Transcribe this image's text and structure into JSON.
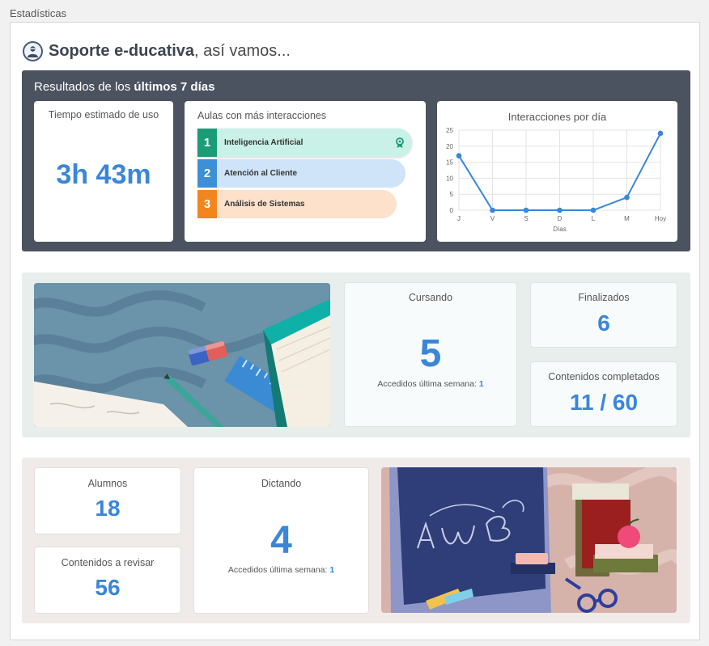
{
  "section_label": "Estadísticas",
  "header": {
    "title_bold": "Soporte e-ducativa",
    "title_rest": ", así vamos..."
  },
  "results": {
    "title_prefix": "Resultados de los ",
    "title_bold": "últimos 7 días",
    "usage": {
      "label": "Tiempo estimado de uso",
      "value": "3h 43m"
    },
    "aulas": {
      "label": "Aulas con más interacciones",
      "items": [
        {
          "rank": "1",
          "name": "Inteligencia Artificial",
          "color": "#1a9c78",
          "bg": "#c9f1e7",
          "icon": "award-icon"
        },
        {
          "rank": "2",
          "name": "Atención al Cliente",
          "color": "#3d8fd6",
          "bg": "#cfe4f8"
        },
        {
          "rank": "3",
          "name": "Análisis de Sistemas",
          "color": "#f2861e",
          "bg": "#fde1cb"
        }
      ]
    },
    "interactions_chart": {
      "label": "Interacciones por día"
    }
  },
  "chart_data": {
    "type": "line",
    "title": "Interacciones por día",
    "xlabel": "Días",
    "ylabel": "",
    "categories": [
      "J",
      "V",
      "S",
      "D",
      "L",
      "M",
      "Hoy"
    ],
    "values": [
      17,
      0,
      0,
      0,
      0,
      4,
      24
    ],
    "ylim": [
      0,
      25
    ],
    "yticks": [
      "0",
      "5",
      "10",
      "15",
      "20",
      "25"
    ],
    "grid": true,
    "color": "#3a86d9"
  },
  "middle": {
    "cursando": {
      "label": "Cursando",
      "value": "5",
      "sub_label": "Accedidos última semana:",
      "sub_value": "1"
    },
    "finalizados": {
      "label": "Finalizados",
      "value": "6"
    },
    "contenidos_completados": {
      "label": "Contenidos completados",
      "value": "11 / 60"
    }
  },
  "bottom": {
    "alumnos": {
      "label": "Alumnos",
      "value": "18"
    },
    "contenidos_revisar": {
      "label": "Contenidos a revisar",
      "value": "56"
    },
    "dictando": {
      "label": "Dictando",
      "value": "4",
      "sub_label": "Accedidos última semana:",
      "sub_value": "1"
    }
  }
}
